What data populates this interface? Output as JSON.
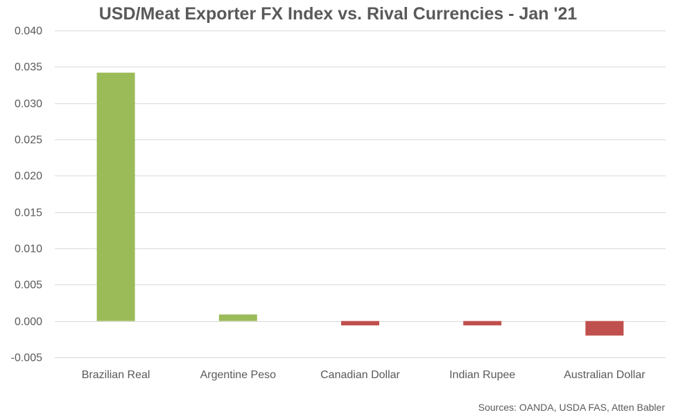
{
  "chart_data": {
    "type": "bar",
    "title": "USD/Meat Exporter FX Index vs. Rival Currencies - Jan '21",
    "xlabel": "",
    "ylabel": "",
    "categories": [
      "Brazilian Real",
      "Argentine Peso",
      "Canadian Dollar",
      "Indian Rupee",
      "Australian Dollar"
    ],
    "values": [
      0.0342,
      0.0009,
      -0.0006,
      -0.0006,
      -0.002
    ],
    "ylim": [
      -0.005,
      0.04
    ],
    "yticks": [
      0.04,
      0.035,
      0.03,
      0.025,
      0.02,
      0.015,
      0.01,
      0.005,
      0.0,
      -0.005
    ],
    "ytick_labels": [
      "0.040",
      "0.035",
      "0.030",
      "0.025",
      "0.020",
      "0.015",
      "0.010",
      "0.005",
      "0.000",
      "-0.005"
    ],
    "grid": true,
    "legend": "none",
    "colors": {
      "positive": "#9BBB59",
      "negative": "#C0504D",
      "grid": "#D9D9D9"
    },
    "source": "Sources: OANDA, USDA FAS, Atten Babler"
  }
}
